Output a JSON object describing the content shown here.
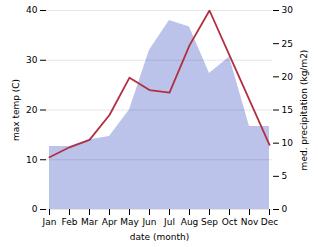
{
  "chart_data": {
    "type": "line",
    "xlabel": "date (month)",
    "ylabel": "max temp (C)",
    "y2label": "med. precipitation (kg/m2)",
    "categories": [
      "Jan",
      "Feb",
      "Mar",
      "Apr",
      "May",
      "Jun",
      "Jul",
      "Aug",
      "Sep",
      "Oct",
      "Nov",
      "Dec"
    ],
    "series": [
      {
        "type": "area",
        "axis": "y2",
        "color": "#b0b8e8",
        "values": [
          9.5,
          9.5,
          10.5,
          11.0,
          15.0,
          24.0,
          28.5,
          27.5,
          20.5,
          23.0,
          12.5,
          12.5
        ]
      },
      {
        "type": "line",
        "color": "#b03040",
        "values": [
          10.5,
          12.5,
          14.0,
          19.0,
          26.5,
          24.0,
          23.5,
          33.0,
          40.0,
          31.0,
          22.0,
          13.0
        ]
      }
    ],
    "ylim": [
      0,
      40
    ],
    "yticks": [
      0,
      10,
      20,
      30,
      40
    ],
    "y2lim": [
      0,
      30
    ],
    "y2ticks": [
      0,
      5,
      10,
      15,
      20,
      25,
      30
    ],
    "grid": true
  }
}
